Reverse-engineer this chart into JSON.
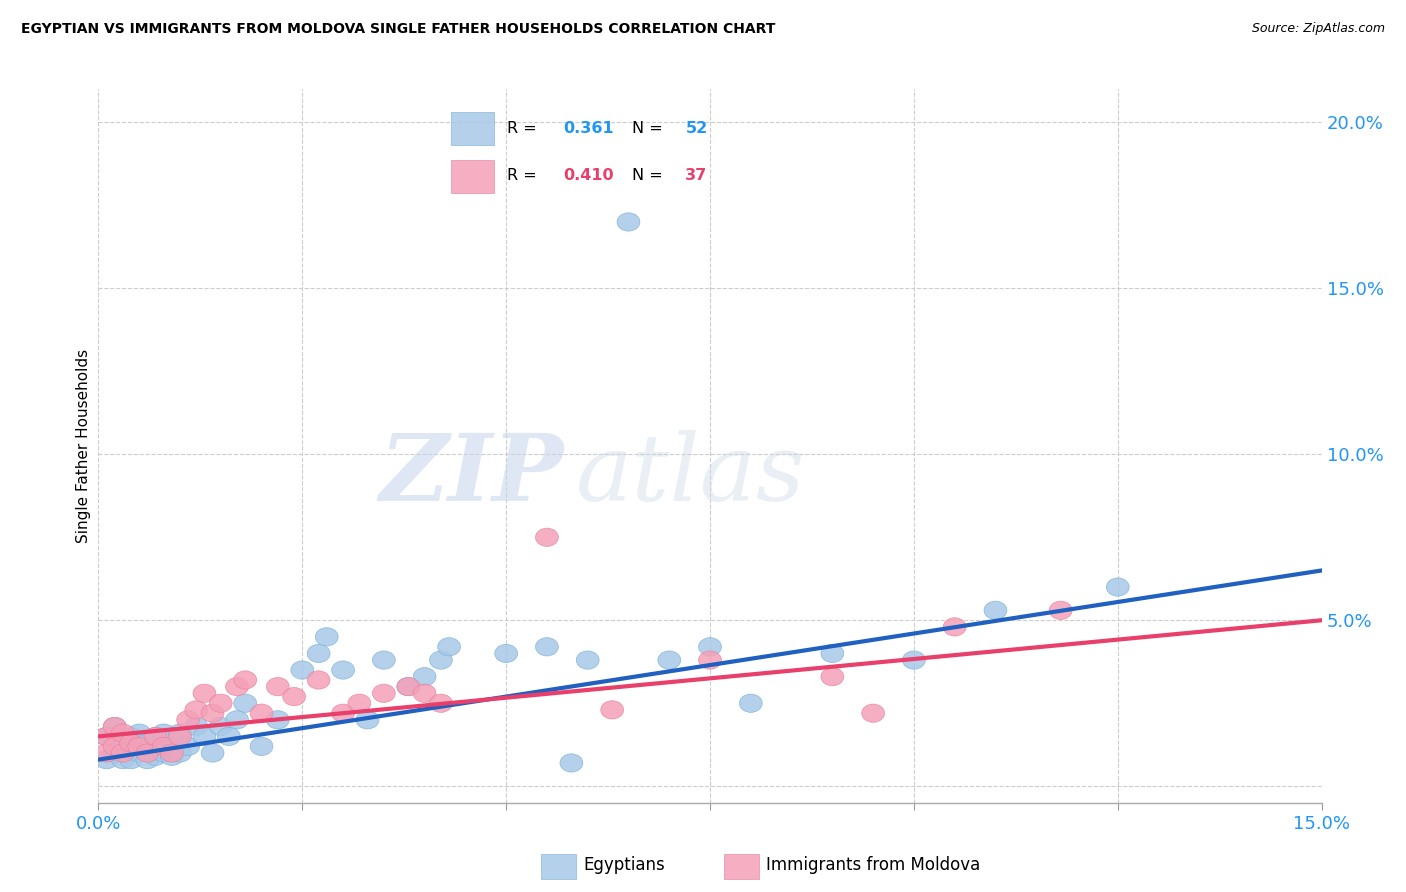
{
  "title": "EGYPTIAN VS IMMIGRANTS FROM MOLDOVA SINGLE FATHER HOUSEHOLDS CORRELATION CHART",
  "source": "Source: ZipAtlas.com",
  "ylabel": "Single Father Households",
  "xlim": [
    0.0,
    0.15
  ],
  "ylim": [
    -0.005,
    0.21
  ],
  "x_ticks": [
    0.0,
    0.025,
    0.05,
    0.075,
    0.1,
    0.125,
    0.15
  ],
  "y_ticks_right": [
    0.0,
    0.05,
    0.1,
    0.15,
    0.2
  ],
  "y_tick_labels_right": [
    "",
    "5.0%",
    "10.0%",
    "15.0%",
    "20.0%"
  ],
  "watermark_zip": "ZIP",
  "watermark_atlas": "atlas",
  "blue_color": "#a8c8e8",
  "blue_edge_color": "#7ab0d8",
  "pink_color": "#f4a0b8",
  "pink_edge_color": "#e8809a",
  "blue_line_color": "#2060c0",
  "pink_line_color": "#e8406a",
  "grid_color": "#cccccc",
  "blue_x": [
    0.001,
    0.001,
    0.002,
    0.002,
    0.003,
    0.003,
    0.004,
    0.004,
    0.005,
    0.005,
    0.006,
    0.006,
    0.007,
    0.007,
    0.008,
    0.008,
    0.009,
    0.009,
    0.01,
    0.01,
    0.011,
    0.012,
    0.013,
    0.014,
    0.015,
    0.016,
    0.017,
    0.018,
    0.02,
    0.022,
    0.025,
    0.027,
    0.028,
    0.03,
    0.033,
    0.035,
    0.038,
    0.04,
    0.042,
    0.043,
    0.05,
    0.055,
    0.058,
    0.06,
    0.065,
    0.07,
    0.075,
    0.08,
    0.09,
    0.1,
    0.11,
    0.125
  ],
  "blue_y": [
    0.008,
    0.015,
    0.01,
    0.018,
    0.008,
    0.012,
    0.008,
    0.015,
    0.01,
    0.016,
    0.008,
    0.013,
    0.009,
    0.015,
    0.01,
    0.016,
    0.009,
    0.014,
    0.01,
    0.016,
    0.012,
    0.018,
    0.015,
    0.01,
    0.018,
    0.015,
    0.02,
    0.025,
    0.012,
    0.02,
    0.035,
    0.04,
    0.045,
    0.035,
    0.02,
    0.038,
    0.03,
    0.033,
    0.038,
    0.042,
    0.04,
    0.042,
    0.007,
    0.038,
    0.17,
    0.038,
    0.042,
    0.025,
    0.04,
    0.038,
    0.053,
    0.06
  ],
  "pink_x": [
    0.001,
    0.001,
    0.002,
    0.002,
    0.003,
    0.003,
    0.004,
    0.005,
    0.006,
    0.007,
    0.008,
    0.009,
    0.01,
    0.011,
    0.012,
    0.013,
    0.014,
    0.015,
    0.017,
    0.018,
    0.02,
    0.022,
    0.024,
    0.027,
    0.03,
    0.032,
    0.035,
    0.038,
    0.04,
    0.042,
    0.055,
    0.063,
    0.075,
    0.09,
    0.095,
    0.105,
    0.118
  ],
  "pink_y": [
    0.01,
    0.015,
    0.012,
    0.018,
    0.01,
    0.016,
    0.013,
    0.012,
    0.01,
    0.015,
    0.012,
    0.01,
    0.015,
    0.02,
    0.023,
    0.028,
    0.022,
    0.025,
    0.03,
    0.032,
    0.022,
    0.03,
    0.027,
    0.032,
    0.022,
    0.025,
    0.028,
    0.03,
    0.028,
    0.025,
    0.075,
    0.023,
    0.038,
    0.033,
    0.022,
    0.048,
    0.053
  ],
  "blue_trend_x": [
    0.0,
    0.15
  ],
  "blue_trend_y": [
    0.008,
    0.065
  ],
  "pink_trend_x": [
    0.0,
    0.15
  ],
  "pink_trend_y": [
    0.015,
    0.05
  ]
}
